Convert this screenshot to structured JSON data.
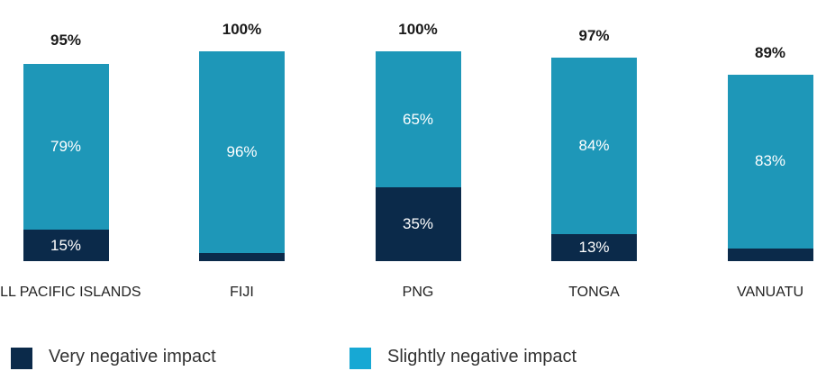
{
  "chart_data": {
    "type": "stacked_bar",
    "categories": [
      "ALL PACIFIC ISLANDS",
      "FIJI",
      "PNG",
      "TONGA",
      "VANUATU"
    ],
    "series": [
      {
        "name": "Slightly negative impact",
        "color": "#0b2a4a",
        "values": [
          15,
          4,
          35,
          13,
          6
        ],
        "value_labels": [
          "15%",
          "4%",
          "35%",
          "13%",
          "6%"
        ]
      },
      {
        "name": "Very negative impact",
        "color": "#1e97b8",
        "values": [
          79,
          96,
          65,
          84,
          83
        ],
        "value_labels": [
          "79%",
          "96%",
          "65%",
          "84%",
          "83%"
        ]
      }
    ],
    "totals": [
      95,
      100,
      100,
      97,
      89
    ],
    "total_labels": [
      "95%",
      "100%",
      "100%",
      "97%",
      "89%"
    ],
    "legend_colors": [
      "#17a8d4",
      "#0b2a4a"
    ],
    "ylim": [
      0,
      100
    ]
  }
}
